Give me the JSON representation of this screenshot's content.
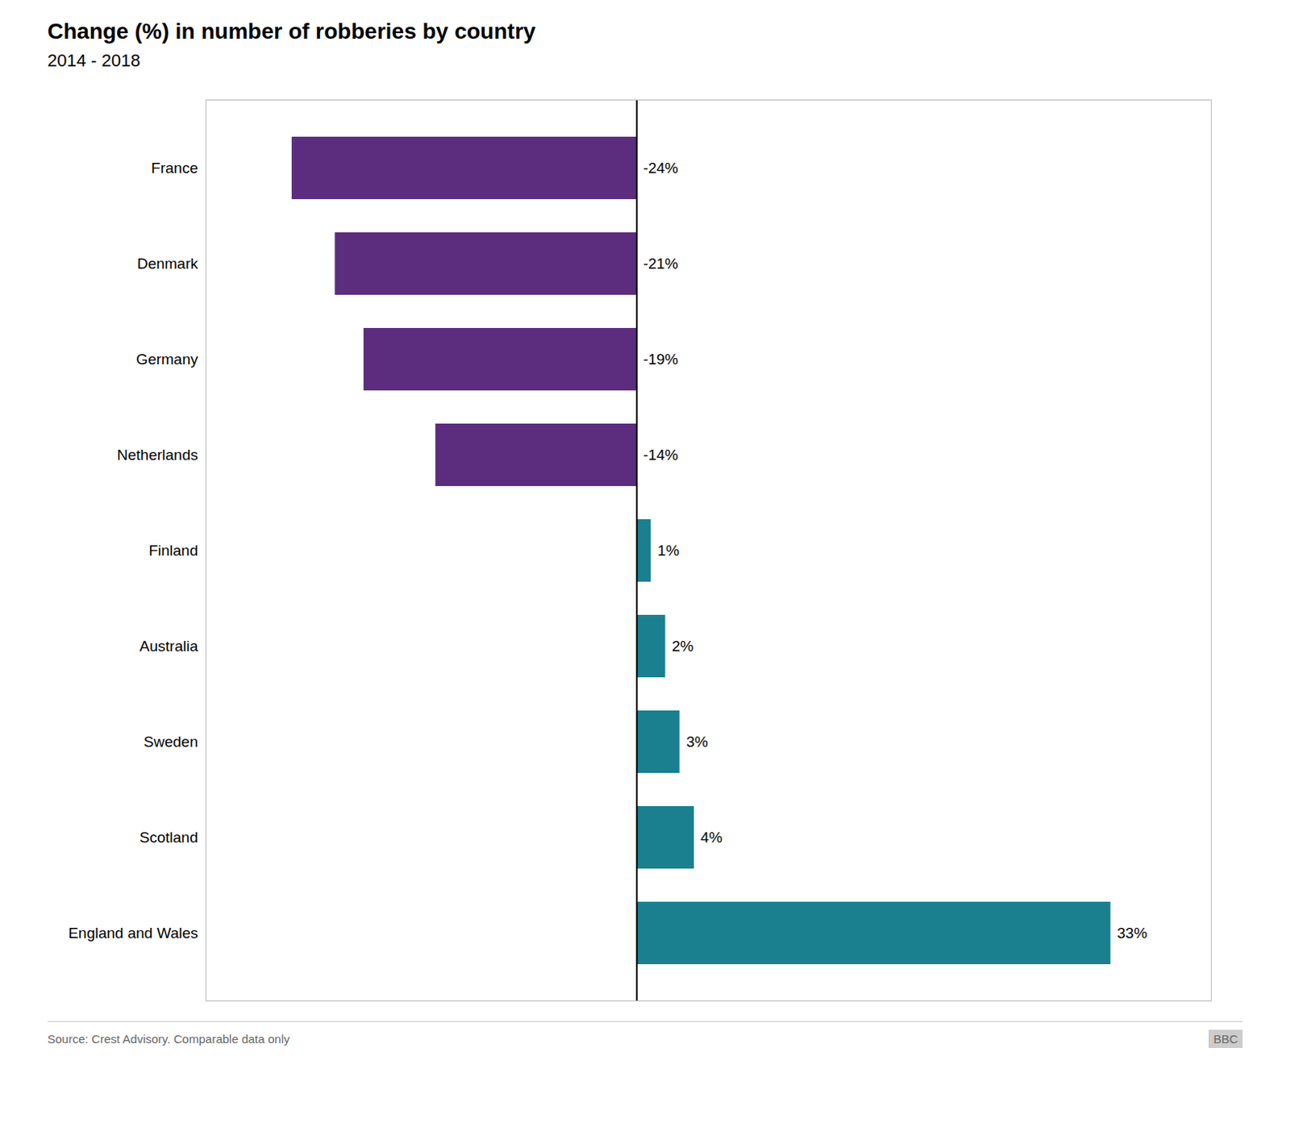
{
  "chart_data": {
    "type": "bar",
    "orientation": "horizontal",
    "title": "Change (%) in number of robberies by country",
    "subtitle": "2014 - 2018",
    "annotations": [
      "Source: Crest Advisory. Comparable data only",
      "BBC"
    ],
    "categories": [
      "France",
      "Denmark",
      "Germany",
      "Netherlands",
      "Finland",
      "Australia",
      "Sweden",
      "Scotland",
      "England and Wales"
    ],
    "values": [
      -24,
      -21,
      -19,
      -14,
      1,
      2,
      3,
      4,
      33
    ],
    "value_labels": [
      "-24%",
      "-21%",
      "-19%",
      "-14%",
      "1%",
      "2%",
      "3%",
      "4%",
      "33%"
    ],
    "colors": [
      "#5c2d7e",
      "#5c2d7e",
      "#5c2d7e",
      "#5c2d7e",
      "#1a7f8e",
      "#1a7f8e",
      "#1a7f8e",
      "#1a7f8e",
      "#1a7f8e"
    ],
    "data_labels": true,
    "xlim": [
      -30,
      40
    ],
    "xticks": [],
    "tick_labels": "y",
    "grid": false
  }
}
